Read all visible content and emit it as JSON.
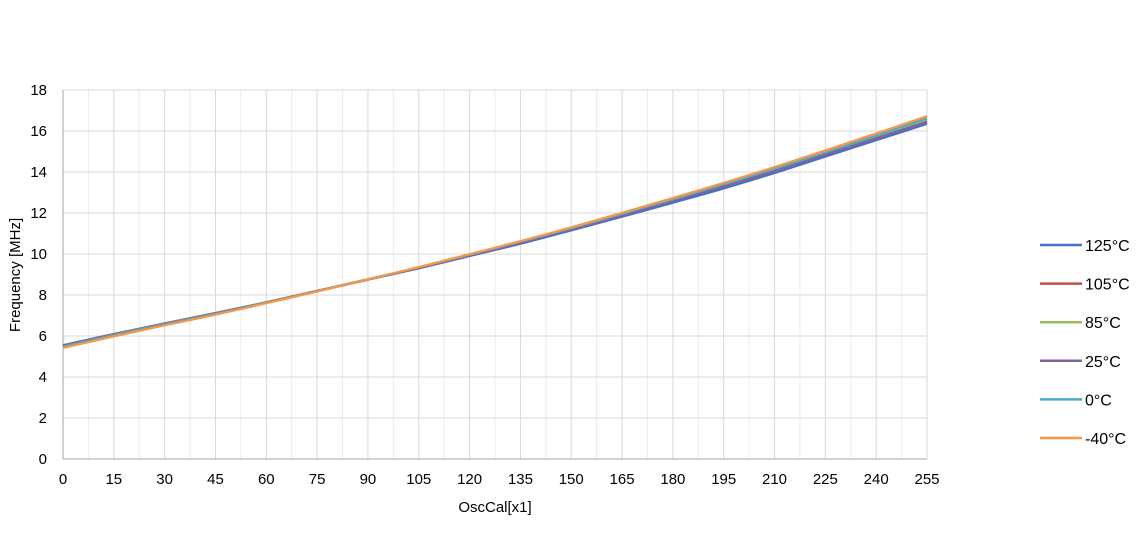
{
  "chart_data": {
    "type": "line",
    "xlabel": "OscCal[x1]",
    "ylabel": "Frequency [MHz]",
    "xlim": [
      0,
      255
    ],
    "ylim": [
      0,
      18
    ],
    "x_ticks": [
      0,
      15,
      30,
      45,
      60,
      75,
      90,
      105,
      120,
      135,
      150,
      165,
      180,
      195,
      210,
      225,
      240,
      255
    ],
    "y_ticks": [
      0,
      2,
      4,
      6,
      8,
      10,
      12,
      14,
      16,
      18
    ],
    "grid": true,
    "legend_position": "right",
    "x": [
      0,
      15,
      30,
      45,
      60,
      75,
      90,
      105,
      120,
      135,
      150,
      165,
      180,
      195,
      210,
      225,
      240,
      255
    ],
    "series": [
      {
        "name": "125°C",
        "color": "#4472c4",
        "values": [
          5.55,
          6.1,
          6.62,
          7.12,
          7.65,
          8.2,
          8.75,
          9.3,
          9.9,
          10.5,
          11.15,
          11.82,
          12.5,
          13.2,
          13.95,
          14.75,
          15.55,
          16.35
        ]
      },
      {
        "name": "105°C",
        "color": "#c0504d",
        "values": [
          5.52,
          6.08,
          6.6,
          7.1,
          7.64,
          8.2,
          8.76,
          9.32,
          9.93,
          10.55,
          11.2,
          11.88,
          12.58,
          13.3,
          14.05,
          14.85,
          15.65,
          16.45
        ]
      },
      {
        "name": "85°C",
        "color": "#9bbb59",
        "values": [
          5.5,
          6.06,
          6.58,
          7.09,
          7.63,
          8.19,
          8.76,
          9.33,
          9.95,
          10.57,
          11.22,
          11.91,
          12.62,
          13.35,
          14.1,
          14.9,
          15.72,
          16.55
        ]
      },
      {
        "name": "25°C",
        "color": "#8064a2",
        "values": [
          5.5,
          6.05,
          6.57,
          7.08,
          7.62,
          8.18,
          8.75,
          9.32,
          9.93,
          10.55,
          11.2,
          11.88,
          12.58,
          13.3,
          14.05,
          14.85,
          15.65,
          16.45
        ]
      },
      {
        "name": "0°C",
        "color": "#4bacc6",
        "values": [
          5.48,
          6.04,
          6.56,
          7.07,
          7.62,
          8.19,
          8.77,
          9.35,
          9.97,
          10.6,
          11.26,
          11.96,
          12.67,
          13.4,
          14.16,
          14.96,
          15.78,
          16.62
        ]
      },
      {
        "name": "-40°C",
        "color": "#f79646",
        "values": [
          5.42,
          5.98,
          6.52,
          7.04,
          7.6,
          8.17,
          8.76,
          9.36,
          9.99,
          10.63,
          11.3,
          12.01,
          12.73,
          13.47,
          14.24,
          15.05,
          15.88,
          16.72
        ]
      }
    ]
  }
}
